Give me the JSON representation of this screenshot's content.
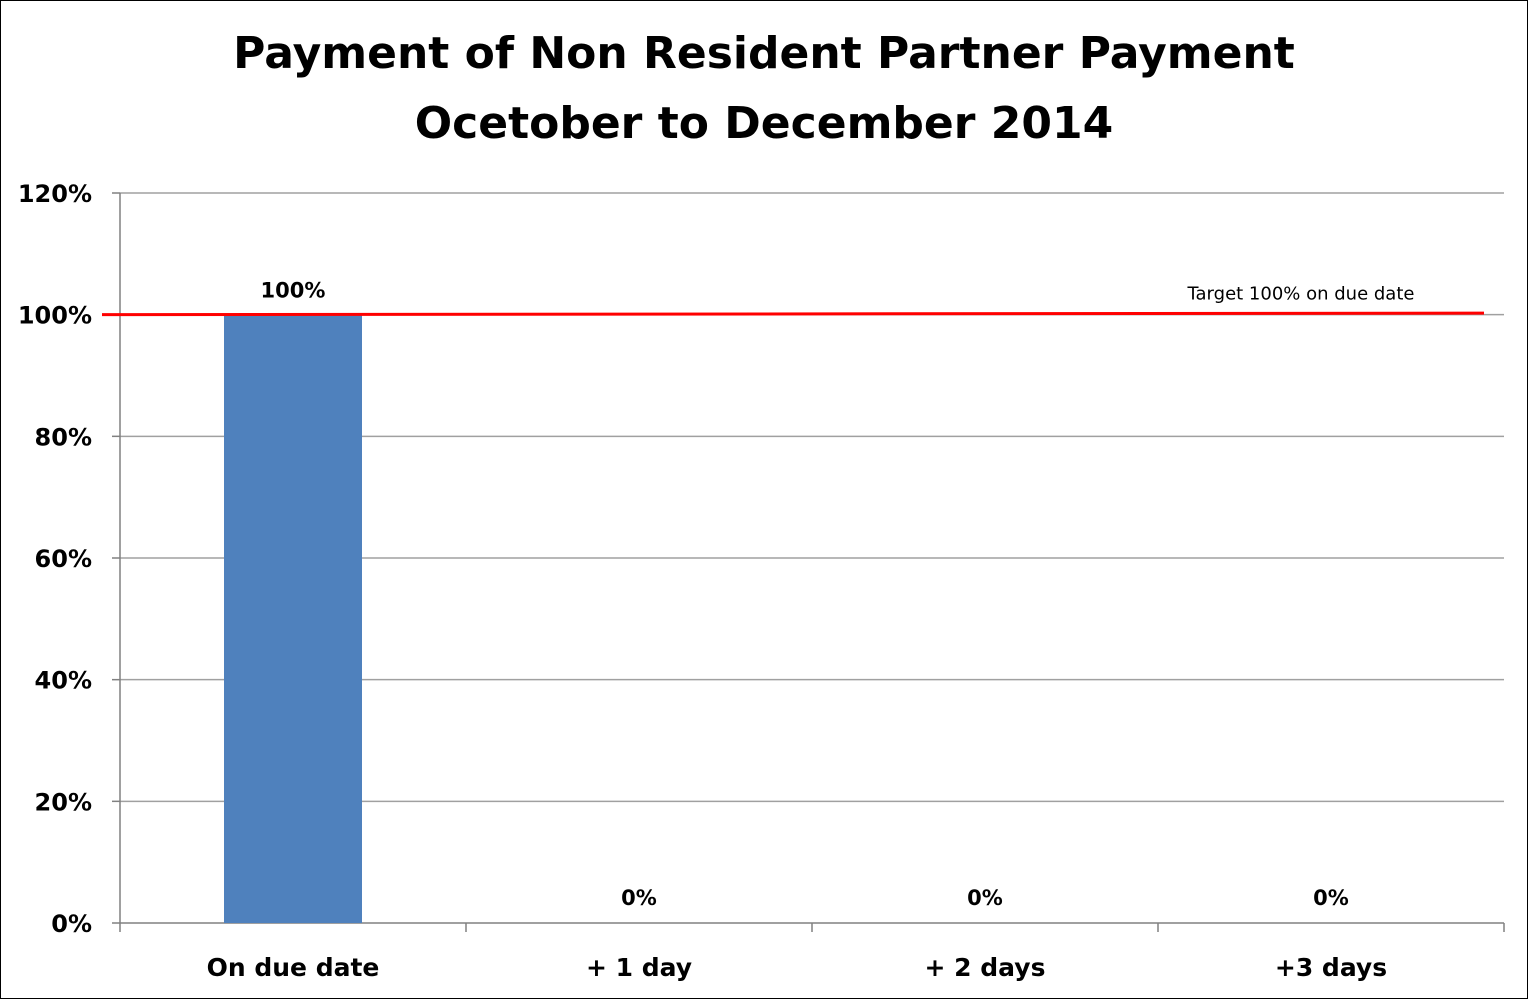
{
  "chart_data": {
    "type": "bar",
    "title_lines": [
      "Payment of Non Resident Partner Payment",
      "Ocetober to December 2014"
    ],
    "categories": [
      "On due date",
      "+ 1 day",
      "+ 2 days",
      "+3 days"
    ],
    "values": [
      100,
      0,
      0,
      0
    ],
    "data_labels": [
      "100%",
      "0%",
      "0%",
      "0%"
    ],
    "ylim": [
      0,
      120
    ],
    "yticks": [
      0,
      20,
      40,
      60,
      80,
      100,
      120
    ],
    "ytick_labels": [
      "0%",
      "20%",
      "40%",
      "60%",
      "80%",
      "100%",
      "120%"
    ],
    "xlabel": "",
    "ylabel": "",
    "grid": true,
    "legend": "none",
    "target": {
      "value": 100,
      "label": "Target 100%  on due date"
    },
    "colors": {
      "bar": "#4F81BD",
      "target_line": "#FF0000",
      "gridline": "#A0A0A0",
      "axis": "#808080"
    }
  }
}
